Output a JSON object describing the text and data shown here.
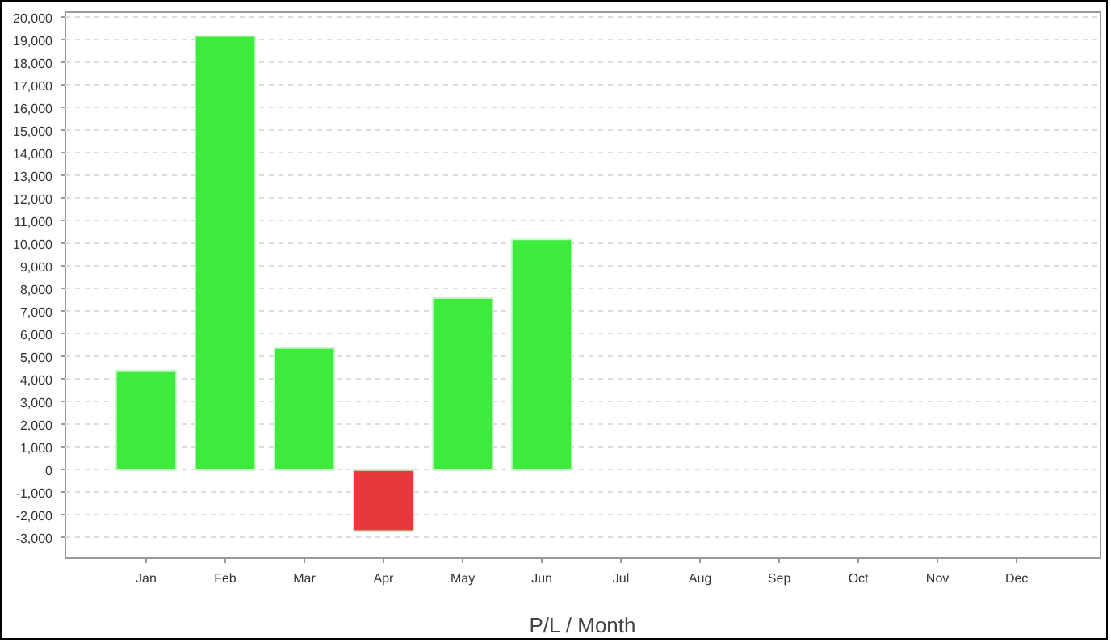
{
  "chart_data": {
    "type": "bar",
    "xlabel": "P/L / Month",
    "categories": [
      "Jan",
      "Feb",
      "Mar",
      "Apr",
      "May",
      "Jun",
      "Jul",
      "Aug",
      "Sep",
      "Oct",
      "Nov",
      "Dec"
    ],
    "values": [
      4400,
      19200,
      5400,
      -2700,
      7600,
      10200,
      null,
      null,
      null,
      null,
      null,
      null
    ],
    "colors": [
      "#3deb3d",
      "#3deb3d",
      "#3deb3d",
      "#e8383d",
      "#3deb3d",
      "#3deb3d",
      "#3deb3d",
      "#3deb3d",
      "#3deb3d",
      "#3deb3d",
      "#3deb3d",
      "#3deb3d"
    ],
    "ylim": [
      -3900,
      20250
    ],
    "yticks": [
      {
        "value": -3000,
        "label": "-3,000"
      },
      {
        "value": -2000,
        "label": "-2,000"
      },
      {
        "value": -1000,
        "label": "-1,000"
      },
      0,
      {
        "value": 1000,
        "label": "1,000"
      },
      {
        "value": 2000,
        "label": "2,000"
      },
      {
        "value": 3000,
        "label": "3,000"
      },
      {
        "value": 4000,
        "label": "4,000"
      },
      {
        "value": 5000,
        "label": "5,000"
      },
      {
        "value": 6000,
        "label": "6,000"
      },
      {
        "value": 7000,
        "label": "7,000"
      },
      {
        "value": 8000,
        "label": "8,000"
      },
      {
        "value": 9000,
        "label": "9,000"
      },
      {
        "value": 10000,
        "label": "10,000"
      },
      {
        "value": 11000,
        "label": "11,000"
      },
      {
        "value": 12000,
        "label": "12,000"
      },
      {
        "value": 13000,
        "label": "13,000"
      },
      {
        "value": 14000,
        "label": "14,000"
      },
      {
        "value": 15000,
        "label": "15,000"
      },
      {
        "value": 16000,
        "label": "16,000"
      },
      {
        "value": 17000,
        "label": "17,000"
      },
      {
        "value": 18000,
        "label": "18,000"
      },
      {
        "value": 19000,
        "label": "19,000"
      },
      {
        "value": 20000,
        "label": "20,000"
      }
    ],
    "grid": "y"
  }
}
